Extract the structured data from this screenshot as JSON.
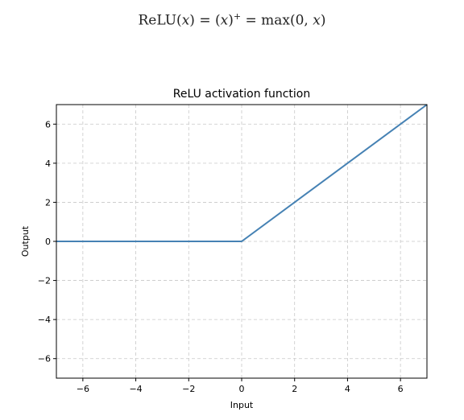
{
  "formula": {
    "fn": "ReLU",
    "lparen1": "(",
    "var1": "x",
    "rparen1": ")",
    "eq1": " = ",
    "lparen2": "(",
    "var2": "x",
    "rparen2": ")",
    "sup": "+",
    "eq2": " = ",
    "max": "max",
    "args_open": "(0, ",
    "var3": "x",
    "args_close": ")"
  },
  "chart_data": {
    "type": "line",
    "title": "ReLU activation function",
    "xlabel": "Input",
    "ylabel": "Output",
    "xlim": [
      -7,
      7
    ],
    "ylim": [
      -7,
      7
    ],
    "xticks": [
      -6,
      -4,
      -2,
      0,
      2,
      4,
      6
    ],
    "yticks": [
      -6,
      -4,
      -2,
      0,
      2,
      4,
      6
    ],
    "grid": true,
    "grid_style": "dashed",
    "line_color": "#4682b4",
    "series": [
      {
        "x": [
          -7,
          0,
          7
        ],
        "y": [
          0,
          0,
          7
        ]
      }
    ]
  }
}
